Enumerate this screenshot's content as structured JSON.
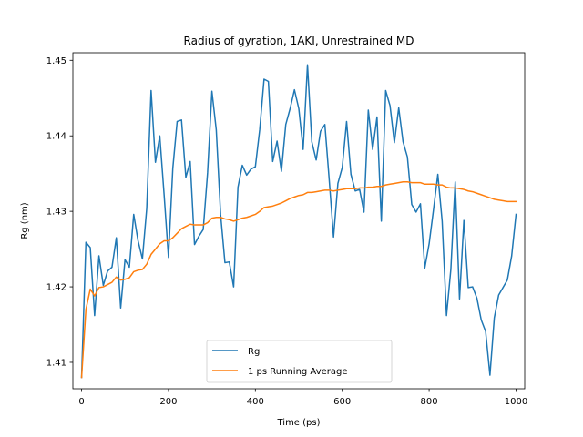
{
  "chart_data": {
    "type": "line",
    "title": "Radius of gyration, 1AKI, Unrestrained MD",
    "xlabel": "Time (ps)",
    "ylabel": "Rg (nm)",
    "xlim": [
      -20,
      1020
    ],
    "ylim": [
      1.4065,
      1.451
    ],
    "xticks": [
      0,
      200,
      400,
      600,
      800,
      1000
    ],
    "yticks": [
      1.41,
      1.42,
      1.43,
      1.44,
      1.45
    ],
    "grid": false,
    "legend_position": "lower-center",
    "x": [
      0,
      10,
      20,
      30,
      40,
      50,
      60,
      70,
      80,
      90,
      100,
      110,
      120,
      130,
      140,
      150,
      160,
      170,
      180,
      190,
      200,
      210,
      220,
      230,
      240,
      250,
      260,
      270,
      280,
      290,
      300,
      310,
      320,
      330,
      340,
      350,
      360,
      370,
      380,
      390,
      400,
      410,
      420,
      430,
      440,
      450,
      460,
      470,
      480,
      490,
      500,
      510,
      520,
      530,
      540,
      550,
      560,
      570,
      580,
      590,
      600,
      610,
      620,
      630,
      640,
      650,
      660,
      670,
      680,
      690,
      700,
      710,
      720,
      730,
      740,
      750,
      760,
      770,
      780,
      790,
      800,
      810,
      820,
      830,
      840,
      850,
      860,
      870,
      880,
      890,
      900,
      910,
      920,
      930,
      940,
      950,
      960,
      970,
      980,
      990,
      1000
    ],
    "series": [
      {
        "name": "Rg",
        "color": "#1f77b4",
        "values": [
          1.408,
          1.4259,
          1.4252,
          1.4162,
          1.4241,
          1.4202,
          1.4221,
          1.4226,
          1.4265,
          1.4172,
          1.4236,
          1.4226,
          1.4296,
          1.4261,
          1.4237,
          1.4304,
          1.446,
          1.4365,
          1.44,
          1.4322,
          1.4239,
          1.4357,
          1.4419,
          1.4421,
          1.4345,
          1.4366,
          1.4256,
          1.4267,
          1.4276,
          1.4351,
          1.4459,
          1.4408,
          1.4296,
          1.4232,
          1.4233,
          1.42,
          1.4332,
          1.4361,
          1.4348,
          1.4356,
          1.4359,
          1.4408,
          1.4475,
          1.4472,
          1.4366,
          1.4393,
          1.4353,
          1.4415,
          1.4436,
          1.4461,
          1.4436,
          1.4382,
          1.4494,
          1.4392,
          1.4368,
          1.4406,
          1.4415,
          1.4342,
          1.4266,
          1.4337,
          1.4358,
          1.4419,
          1.4349,
          1.4327,
          1.4329,
          1.4299,
          1.4434,
          1.4382,
          1.4425,
          1.4287,
          1.446,
          1.444,
          1.4391,
          1.4437,
          1.4392,
          1.4372,
          1.4309,
          1.4299,
          1.431,
          1.4225,
          1.4257,
          1.4302,
          1.4349,
          1.4287,
          1.4162,
          1.4223,
          1.4339,
          1.4184,
          1.4288,
          1.4199,
          1.42,
          1.4185,
          1.4156,
          1.4141,
          1.4083,
          1.4159,
          1.4189,
          1.4199,
          1.4209,
          1.4241,
          1.4296
        ]
      },
      {
        "name": "1 ps Running Average",
        "color": "#ff7f0e",
        "values": [
          1.408,
          1.417,
          1.4197,
          1.4188,
          1.4199,
          1.42,
          1.4203,
          1.4206,
          1.4213,
          1.4209,
          1.421,
          1.4212,
          1.422,
          1.4222,
          1.4223,
          1.423,
          1.4243,
          1.425,
          1.4257,
          1.4261,
          1.4261,
          1.4265,
          1.4271,
          1.4277,
          1.428,
          1.4283,
          1.4282,
          1.4282,
          1.4282,
          1.4285,
          1.4291,
          1.4292,
          1.4292,
          1.429,
          1.4289,
          1.4287,
          1.4289,
          1.4291,
          1.4292,
          1.4294,
          1.4296,
          1.43,
          1.4305,
          1.4306,
          1.4307,
          1.4309,
          1.4311,
          1.4314,
          1.4317,
          1.4319,
          1.4321,
          1.4322,
          1.4325,
          1.4325,
          1.4326,
          1.4327,
          1.4328,
          1.4328,
          1.4327,
          1.4328,
          1.4329,
          1.433,
          1.433,
          1.433,
          1.4331,
          1.4331,
          1.4332,
          1.4332,
          1.4333,
          1.4333,
          1.4335,
          1.4336,
          1.4337,
          1.4338,
          1.4339,
          1.4339,
          1.4338,
          1.4338,
          1.4338,
          1.4336,
          1.4336,
          1.4336,
          1.4335,
          1.4335,
          1.4332,
          1.4331,
          1.4331,
          1.433,
          1.4329,
          1.4327,
          1.4326,
          1.4324,
          1.4322,
          1.432,
          1.4318,
          1.4316,
          1.4315,
          1.4314,
          1.4313,
          1.4313,
          1.4313
        ]
      }
    ]
  }
}
